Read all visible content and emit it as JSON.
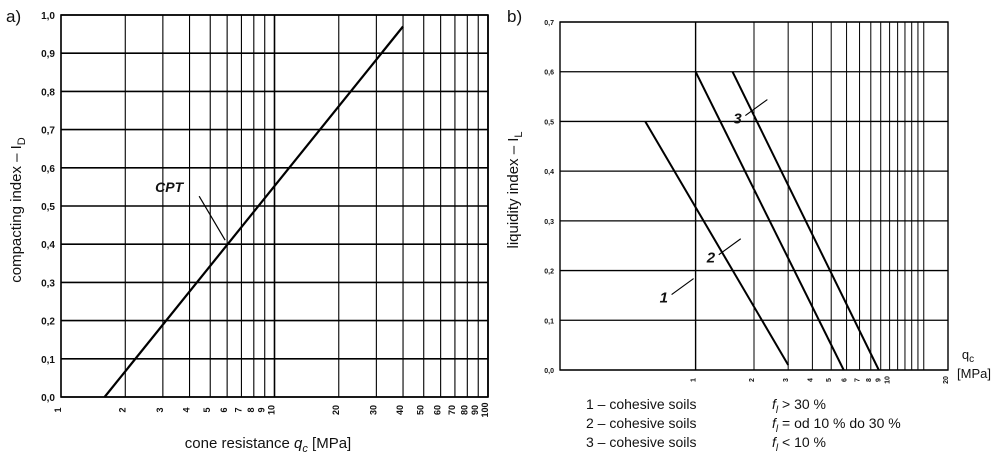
{
  "chart_data": [
    {
      "panel_label": "a)",
      "type": "line",
      "xscale": "log",
      "xlim": [
        1,
        100
      ],
      "ylim": [
        0,
        1.0
      ],
      "grid": true,
      "xlabel_prefix": "cone resistance ",
      "xlabel_var": "q",
      "xlabel_sub": "c",
      "xlabel_suffix": " [MPa]",
      "ylabel": "compacting index – I",
      "ylabel_sub": "D",
      "xticks": [
        {
          "value": 1,
          "label": "1"
        },
        {
          "value": 2,
          "label": "2"
        },
        {
          "value": 3,
          "label": "3"
        },
        {
          "value": 4,
          "label": "4"
        },
        {
          "value": 5,
          "label": "5"
        },
        {
          "value": 6,
          "label": "6"
        },
        {
          "value": 7,
          "label": "7"
        },
        {
          "value": 8,
          "label": "8"
        },
        {
          "value": 9,
          "label": "9"
        },
        {
          "value": 10,
          "label": "10"
        },
        {
          "value": 20,
          "label": "20"
        },
        {
          "value": 30,
          "label": "30"
        },
        {
          "value": 40,
          "label": "40"
        },
        {
          "value": 50,
          "label": "50"
        },
        {
          "value": 60,
          "label": "60"
        },
        {
          "value": 70,
          "label": "70"
        },
        {
          "value": 80,
          "label": "80"
        },
        {
          "value": 90,
          "label": "90"
        },
        {
          "value": 100,
          "label": "100"
        }
      ],
      "yticks": [
        {
          "value": 0.0,
          "label": "0,0"
        },
        {
          "value": 0.1,
          "label": "0,1"
        },
        {
          "value": 0.2,
          "label": "0,2"
        },
        {
          "value": 0.3,
          "label": "0,3"
        },
        {
          "value": 0.4,
          "label": "0,4"
        },
        {
          "value": 0.5,
          "label": "0,5"
        },
        {
          "value": 0.6,
          "label": "0,6"
        },
        {
          "value": 0.7,
          "label": "0,7"
        },
        {
          "value": 0.8,
          "label": "0,8"
        },
        {
          "value": 0.9,
          "label": "0,9"
        },
        {
          "value": 1.0,
          "label": "1,0"
        }
      ],
      "series": [
        {
          "name": "CPT",
          "x": [
            1.6,
            40
          ],
          "y": [
            0.0,
            0.97
          ]
        }
      ],
      "annotations": [
        {
          "text": "CPT",
          "pointer_x": 6.0,
          "pointer_y": 0.4
        }
      ]
    },
    {
      "panel_label": "b)",
      "type": "line",
      "xscale": "log",
      "xlim": [
        0.2,
        20
      ],
      "ylim": [
        0,
        0.7
      ],
      "grid": true,
      "xlabel_var": "q",
      "xlabel_sub": "c",
      "xlabel_unit": "[MPa]",
      "ylabel": "liquidity index – I",
      "ylabel_sub": "L",
      "xticks": [
        {
          "value": 1,
          "label": "1"
        },
        {
          "value": 2,
          "label": "2"
        },
        {
          "value": 3,
          "label": "3"
        },
        {
          "value": 4,
          "label": "4"
        },
        {
          "value": 5,
          "label": "5"
        },
        {
          "value": 6,
          "label": "6"
        },
        {
          "value": 7,
          "label": "7"
        },
        {
          "value": 8,
          "label": "8"
        },
        {
          "value": 9,
          "label": "9"
        },
        {
          "value": 10,
          "label": "10"
        },
        {
          "value": 20,
          "label": "20"
        }
      ],
      "xgrid": [
        1,
        2,
        3,
        4,
        5,
        6,
        7,
        8,
        9,
        10,
        11,
        12,
        13,
        14,
        15
      ],
      "yticks": [
        {
          "value": 0.0,
          "label": "0,0"
        },
        {
          "value": 0.1,
          "label": "0,1"
        },
        {
          "value": 0.2,
          "label": "0,2"
        },
        {
          "value": 0.3,
          "label": "0,3"
        },
        {
          "value": 0.4,
          "label": "0,4"
        },
        {
          "value": 0.5,
          "label": "0,5"
        },
        {
          "value": 0.6,
          "label": "0,6"
        },
        {
          "value": 0.7,
          "label": "0,7"
        }
      ],
      "series": [
        {
          "name": "1",
          "x": [
            0.55,
            3.0
          ],
          "y": [
            0.5,
            0.01
          ]
        },
        {
          "name": "2",
          "x": [
            1.0,
            5.8
          ],
          "y": [
            0.6,
            0.0
          ]
        },
        {
          "name": "3",
          "x": [
            1.55,
            8.8
          ],
          "y": [
            0.6,
            0.0
          ]
        }
      ],
      "annotations": [
        {
          "text": "1",
          "pointer_x": 1.0,
          "pointer_y": 0.18
        },
        {
          "text": "2",
          "pointer_x": 1.75,
          "pointer_y": 0.26
        },
        {
          "text": "3",
          "pointer_x": 2.4,
          "pointer_y": 0.54
        }
      ],
      "legend": [
        {
          "id": "1 – cohesive soils",
          "cond_var": "f",
          "cond_sub": "l",
          "cond": " > 30 %"
        },
        {
          "id": "2 – cohesive soils",
          "cond_var": "f",
          "cond_sub": "l",
          "cond": " = od 10 % do 30 %"
        },
        {
          "id": "3 – cohesive soils",
          "cond_var": "f",
          "cond_sub": "l",
          "cond": " < 10 %"
        }
      ]
    }
  ]
}
